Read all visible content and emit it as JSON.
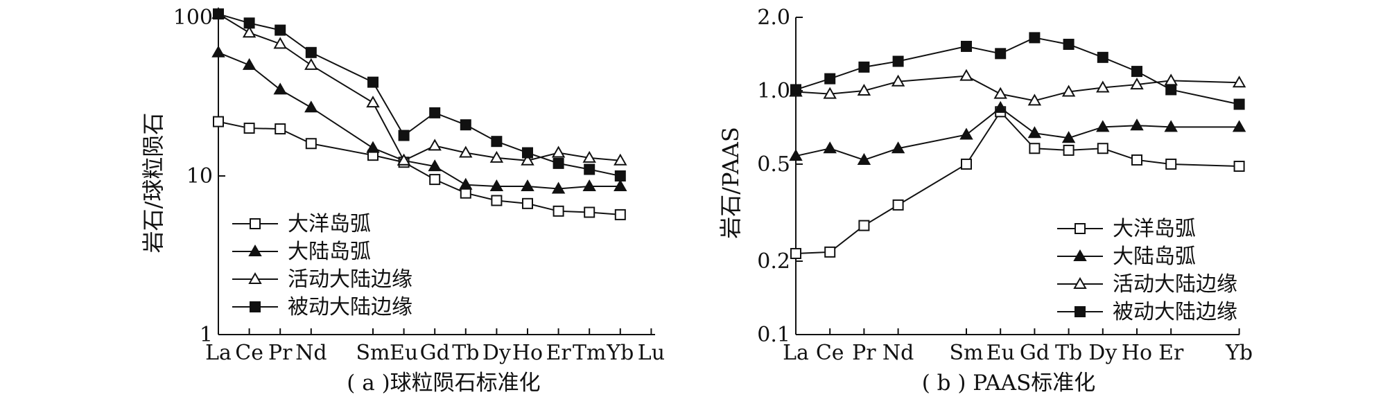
{
  "chart_data": [
    {
      "type": "line",
      "id": "a",
      "caption": "( a )球粒陨石标准化",
      "ylabel": "岩石/球粒陨石",
      "xlabel": "",
      "yscale": "log",
      "ylim": [
        1,
        100
      ],
      "yticks": [
        1,
        10,
        100
      ],
      "ytick_labels": [
        "1",
        "10",
        "100"
      ],
      "categories": [
        "La",
        "Ce",
        "Pr",
        "Nd",
        "Sm",
        "Eu",
        "Gd",
        "Tb",
        "Dy",
        "Ho",
        "Er",
        "Tm",
        "Yb",
        "Lu"
      ],
      "category_positions": [
        0,
        1,
        2,
        3,
        5,
        6,
        7,
        8,
        9,
        10,
        11,
        12,
        13,
        14
      ],
      "legend_position": "bottom-left",
      "series": [
        {
          "name": "大洋岛弧",
          "marker": "open-square",
          "x": [
            "La",
            "Ce",
            "Pr",
            "Nd",
            "Sm",
            "Eu",
            "Gd",
            "Tb",
            "Dy",
            "Ho",
            "Er",
            "Tm",
            "Yb"
          ],
          "values": [
            22,
            20,
            19.8,
            16,
            13.5,
            12.2,
            9.5,
            7.8,
            7.0,
            6.7,
            6.0,
            5.9,
            5.7
          ]
        },
        {
          "name": "大陆岛弧",
          "marker": "filled-triangle",
          "x": [
            "La",
            "Ce",
            "Pr",
            "Nd",
            "Sm",
            "Eu",
            "Gd",
            "Tb",
            "Dy",
            "Ho",
            "Er",
            "Tm",
            "Yb"
          ],
          "values": [
            60,
            50,
            35,
            27,
            15,
            12.5,
            11.5,
            8.8,
            8.6,
            8.6,
            8.3,
            8.6,
            8.6
          ]
        },
        {
          "name": "活动大陆边缘",
          "marker": "open-triangle",
          "x": [
            "La",
            "Ce",
            "Pr",
            "Nd",
            "Sm",
            "Eu",
            "Gd",
            "Tb",
            "Dy",
            "Ho",
            "Er",
            "Tm",
            "Yb"
          ],
          "values": [
            105,
            80,
            68,
            50,
            29,
            12.5,
            15.5,
            14,
            13,
            12.5,
            14,
            13,
            12.5
          ]
        },
        {
          "name": "被动大陆边缘",
          "marker": "filled-square",
          "x": [
            "La",
            "Ce",
            "Pr",
            "Nd",
            "Sm",
            "Eu",
            "Gd",
            "Tb",
            "Dy",
            "Ho",
            "Er",
            "Tm",
            "Yb"
          ],
          "values": [
            105,
            92,
            83,
            60,
            39,
            18,
            25,
            21,
            16.5,
            14,
            12,
            11,
            10
          ]
        }
      ]
    },
    {
      "type": "line",
      "id": "b",
      "caption": "( b ) PAAS标准化",
      "ylabel": "岩石/PAAS",
      "xlabel": "",
      "yscale": "log",
      "ylim": [
        0.1,
        2.0
      ],
      "yticks": [
        0.1,
        0.2,
        0.5,
        1.0,
        2.0
      ],
      "ytick_labels": [
        "0.1",
        "0.2",
        "0.5",
        "1.0",
        "2.0"
      ],
      "categories": [
        "La",
        "Ce",
        "Pr",
        "Nd",
        "Sm",
        "Eu",
        "Gd",
        "Tb",
        "Dy",
        "Ho",
        "Er",
        "Yb"
      ],
      "category_positions": [
        0,
        1,
        2,
        3,
        5,
        6,
        7,
        8,
        9,
        10,
        11,
        13
      ],
      "point_positions": [
        0,
        1,
        2,
        3,
        5,
        6,
        7,
        8,
        9,
        10,
        11,
        13
      ],
      "legend_position": "bottom-right",
      "series": [
        {
          "name": "大洋岛弧",
          "marker": "open-square",
          "x": [
            "La",
            "Ce",
            "Pr",
            "Nd",
            "Sm",
            "Eu",
            "Gd",
            "Tb",
            "Dy",
            "Ho",
            "Er",
            "Yb"
          ],
          "values": [
            0.215,
            0.218,
            0.28,
            0.34,
            0.5,
            0.82,
            0.58,
            0.57,
            0.58,
            0.52,
            0.5,
            0.49
          ]
        },
        {
          "name": "大陆岛弧",
          "marker": "filled-triangle",
          "x": [
            "La",
            "Ce",
            "Pr",
            "Nd",
            "Sm",
            "Eu",
            "Gd",
            "Tb",
            "Dy",
            "Ho",
            "Er",
            "Yb"
          ],
          "values": [
            0.54,
            0.58,
            0.52,
            0.58,
            0.66,
            0.85,
            0.67,
            0.64,
            0.71,
            0.72,
            0.71,
            0.71
          ]
        },
        {
          "name": "活动大陆边缘",
          "marker": "open-triangle",
          "x": [
            "La",
            "Ce",
            "Pr",
            "Nd",
            "Sm",
            "Eu",
            "Gd",
            "Tb",
            "Dy",
            "Ho",
            "Er",
            "Yb"
          ],
          "values": [
            0.99,
            0.97,
            1.0,
            1.09,
            1.15,
            0.97,
            0.91,
            0.99,
            1.03,
            1.06,
            1.1,
            1.08
          ]
        },
        {
          "name": "被动大陆边缘",
          "marker": "filled-square",
          "x": [
            "La",
            "Ce",
            "Pr",
            "Nd",
            "Sm",
            "Eu",
            "Gd",
            "Tb",
            "Dy",
            "Ho",
            "Er",
            "Yb"
          ],
          "values": [
            1.01,
            1.12,
            1.25,
            1.32,
            1.52,
            1.42,
            1.65,
            1.55,
            1.37,
            1.2,
            1.01,
            0.88
          ]
        }
      ]
    }
  ]
}
